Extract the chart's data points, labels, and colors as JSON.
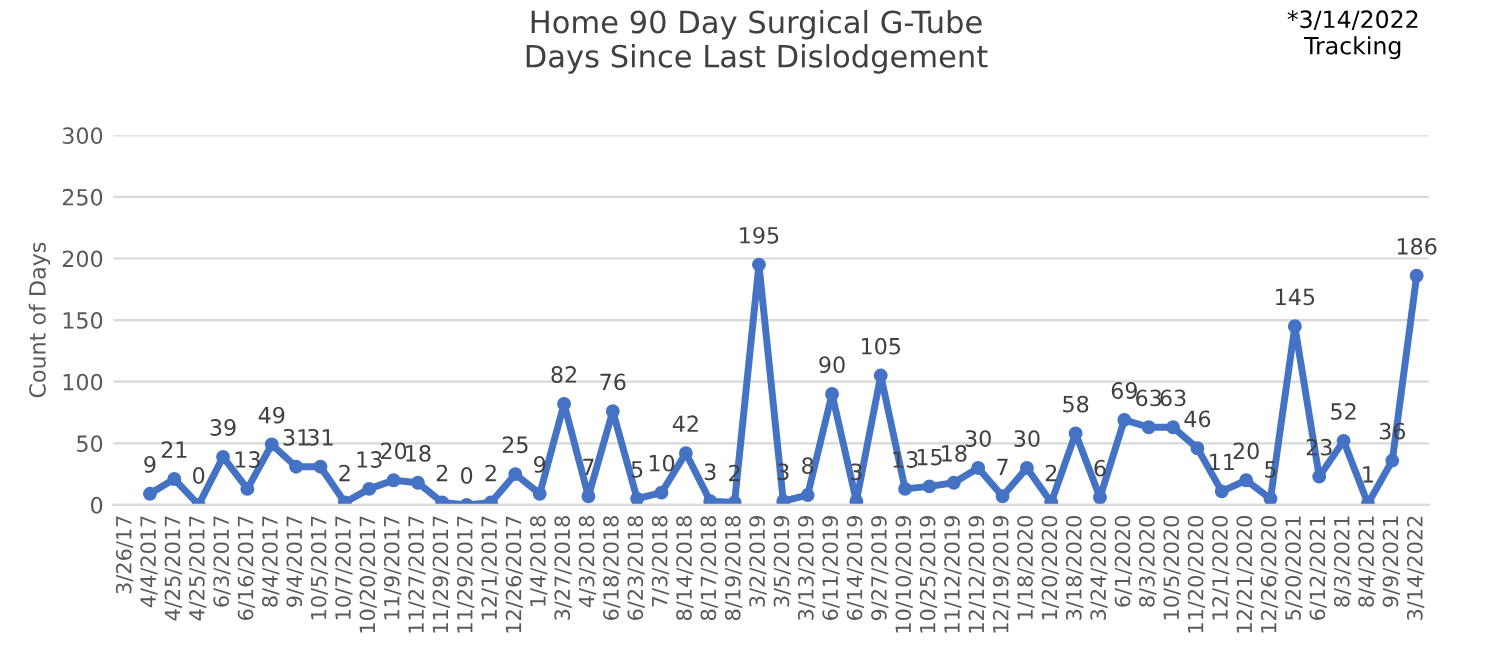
{
  "chart_data": {
    "type": "line",
    "title": "Home 90 Day Surgical G-Tube\nDays Since Last Dislodgement",
    "ylabel": "Count of Days",
    "annotations": [
      "*3/14/2022\nTracking"
    ],
    "categories": [
      "3/26/17",
      "4/4/2017",
      "4/25/2017",
      "4/25/2017",
      "6/3/2017",
      "6/16/2017",
      "8/4/2017",
      "9/4/2017",
      "10/5/2017",
      "10/7/2017",
      "10/20/2017",
      "11/9/2017",
      "11/27/2017",
      "11/29/2017",
      "11/29/2017",
      "12/1/2017",
      "12/26/2017",
      "1/4/2018",
      "3/27/2018",
      "4/3/2018",
      "6/18/2018",
      "6/23/2018",
      "7/3/2018",
      "8/14/2018",
      "8/17/2018",
      "8/19/2018",
      "3/2/2019",
      "3/5/2019",
      "3/13/2019",
      "6/11/2019",
      "6/14/2019",
      "9/27/2019",
      "10/10/2019",
      "10/25/2019",
      "11/12/2019",
      "12/12/2019",
      "12/19/2019",
      "1/18/2020",
      "1/20/2020",
      "3/18/2020",
      "3/24/2020",
      "6/1/2020",
      "8/3/2020",
      "10/5/2020",
      "11/20/2020",
      "12/1/2020",
      "12/21/2020",
      "12/26/2020",
      "5/20/2021",
      "6/12/2021",
      "8/3/2021",
      "8/4/2021",
      "9/9/2021",
      "3/14/2022"
    ],
    "series": [
      {
        "color": "#4472c4",
        "values": [
          null,
          9,
          21,
          0,
          39,
          13,
          49,
          31,
          31,
          2,
          13,
          20,
          18,
          2,
          0,
          2,
          25,
          9,
          82,
          7,
          76,
          5,
          10,
          42,
          3,
          2,
          195,
          3,
          8,
          90,
          3,
          105,
          13,
          15,
          18,
          30,
          7,
          30,
          2,
          58,
          6,
          69,
          63,
          63,
          46,
          11,
          20,
          5,
          145,
          23,
          52,
          1,
          36,
          186
        ]
      }
    ],
    "ylim": [
      0,
      300
    ],
    "yticks": [
      0,
      50,
      100,
      150,
      200,
      250,
      300
    ],
    "grid": "y",
    "marker": "circle",
    "line_style": "solid",
    "data_labels": true,
    "legend": false
  }
}
